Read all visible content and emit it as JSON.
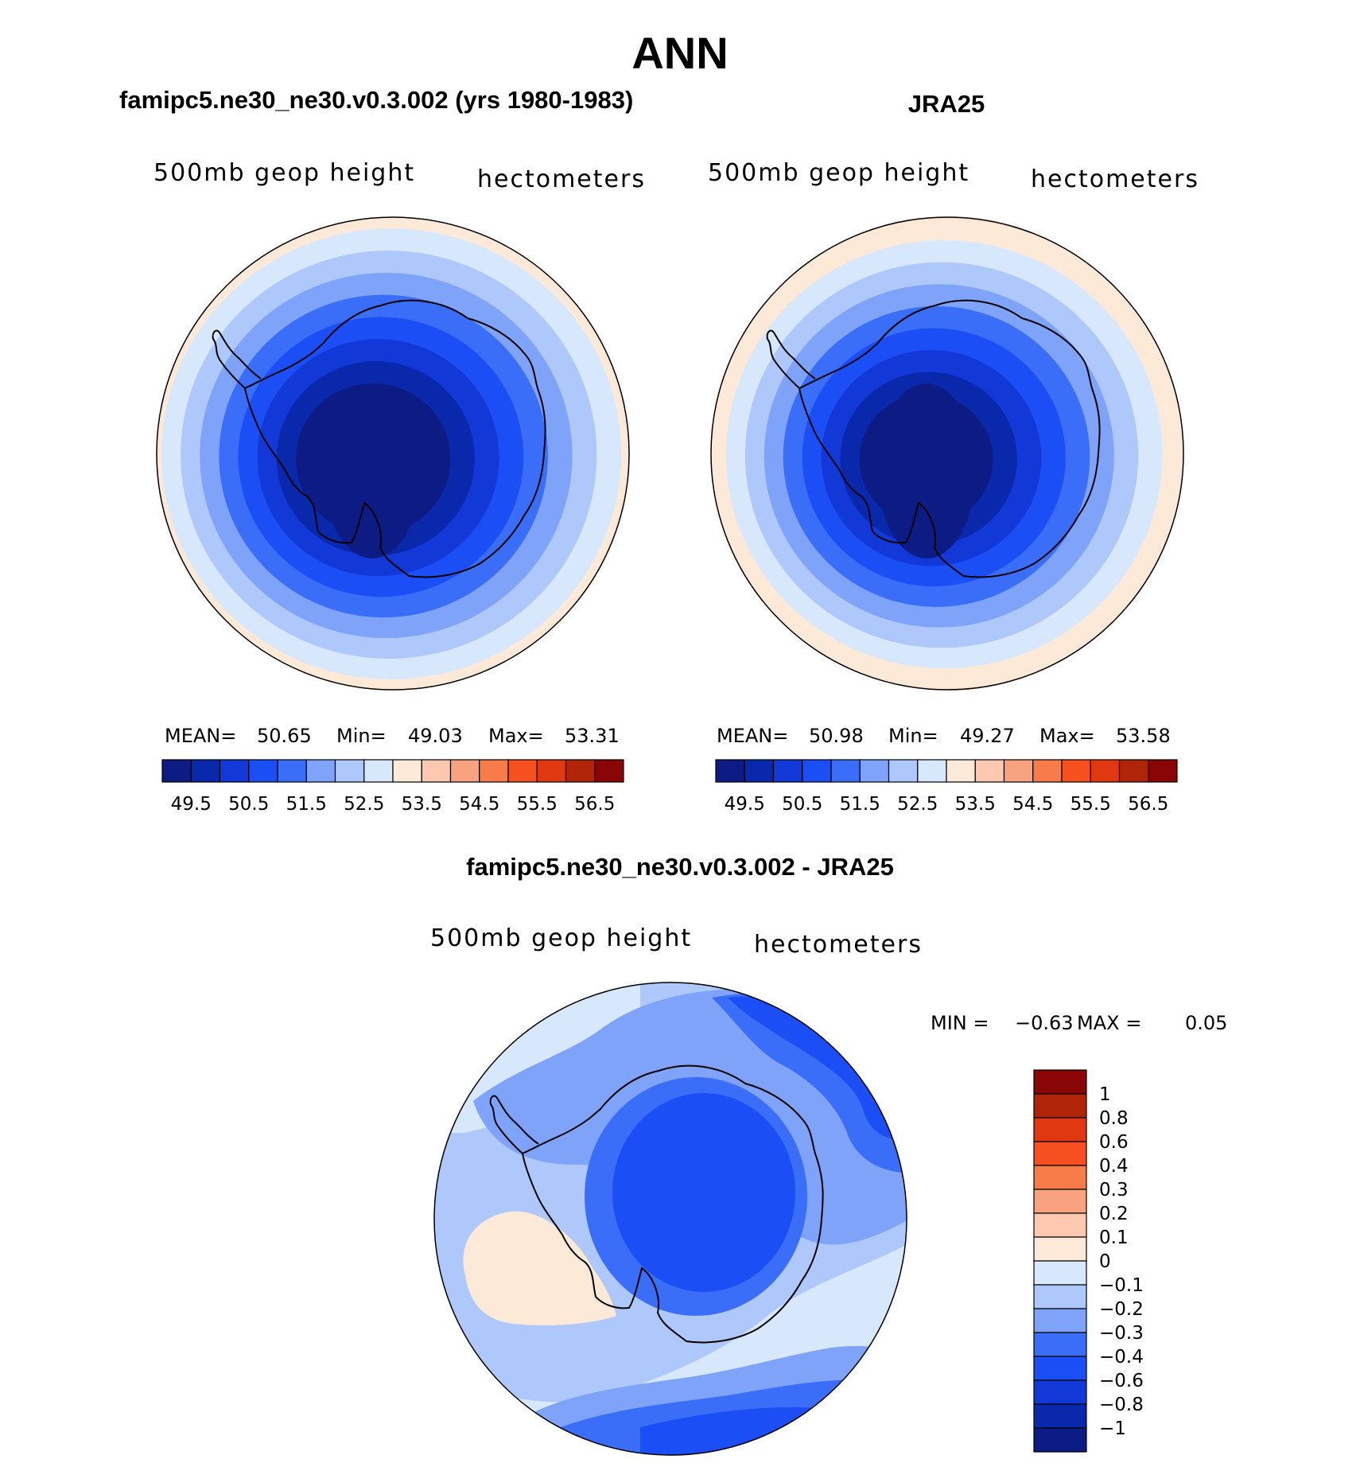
{
  "title": "ANN",
  "colors": {
    "panel_palette": [
      "#0c1c84",
      "#0a28ac",
      "#1338d8",
      "#1c4ef6",
      "#3a6ef8",
      "#7ea3f9",
      "#aec8fb",
      "#d8e8fc",
      "#fde9d8",
      "#fcc8b0",
      "#f9a280",
      "#f87c4a",
      "#f65020",
      "#e03810",
      "#b02508",
      "#8a0606"
    ],
    "diff_palette": [
      "#0c1c84",
      "#0a28ac",
      "#1338d8",
      "#1c4ef6",
      "#3a6ef8",
      "#7ea3f9",
      "#aec8fb",
      "#d8e8fc",
      "#fde9d8",
      "#fcc8b0",
      "#f9a280",
      "#f87c4a",
      "#f65020",
      "#e03810",
      "#b02508",
      "#8a0606"
    ]
  },
  "panels": [
    {
      "title": "famipc5.ne30_ne30.v0.3.002 (yrs 1980-1983)",
      "variable_label": "500mb geop height",
      "units_label": "hectometers",
      "stats": {
        "mean_label": "MEAN=",
        "mean": "50.65",
        "min_label": "Min=",
        "min": "49.03",
        "max_label": "Max=",
        "max": "53.31"
      },
      "field": {
        "center_value": 49.03,
        "edge_value": 53.31
      },
      "colorbar_ticks": [
        "49.5",
        "50.5",
        "51.5",
        "52.5",
        "53.5",
        "54.5",
        "55.5",
        "56.5"
      ]
    },
    {
      "title": "JRA25",
      "variable_label": "500mb geop height",
      "units_label": "hectometers",
      "stats": {
        "mean_label": "MEAN=",
        "mean": "50.98",
        "min_label": "Min=",
        "min": "49.27",
        "max_label": "Max=",
        "max": "53.58"
      },
      "field": {
        "center_value": 49.27,
        "edge_value": 53.58
      },
      "colorbar_ticks": [
        "49.5",
        "50.5",
        "51.5",
        "52.5",
        "53.5",
        "54.5",
        "55.5",
        "56.5"
      ]
    }
  ],
  "difference": {
    "title": "famipc5.ne30_ne30.v0.3.002 - JRA25",
    "variable_label": "500mb geop height",
    "units_label": "hectometers",
    "stats": {
      "min_label": "MIN =",
      "min": "−0.63",
      "max_label": "MAX =",
      "max": "0.05"
    },
    "colorbar_ticks": [
      "1",
      "0.8",
      "0.6",
      "0.4",
      "0.3",
      "0.2",
      "0.1",
      "0",
      "−0.1",
      "−0.2",
      "−0.3",
      "−0.4",
      "−0.6",
      "−0.8",
      "−1"
    ]
  },
  "chart_data": [
    {
      "type": "heatmap",
      "projection": "south polar stereographic",
      "title": "famipc5.ne30_ne30.v0.3.002 (yrs 1980-1983)",
      "variable": "500mb geop height",
      "units": "hectometers",
      "mean": 50.65,
      "min": 49.03,
      "max": 53.31,
      "contour_levels": [
        49.5,
        50,
        50.5,
        51,
        51.5,
        52,
        52.5,
        53,
        53.5,
        54,
        54.5,
        55,
        55.5,
        56,
        56.5
      ],
      "colorbar_tick_labels": [
        49.5,
        50.5,
        51.5,
        52.5,
        53.5,
        54.5,
        55.5,
        56.5
      ]
    },
    {
      "type": "heatmap",
      "projection": "south polar stereographic",
      "title": "JRA25",
      "variable": "500mb geop height",
      "units": "hectometers",
      "mean": 50.98,
      "min": 49.27,
      "max": 53.58,
      "contour_levels": [
        49.5,
        50,
        50.5,
        51,
        51.5,
        52,
        52.5,
        53,
        53.5,
        54,
        54.5,
        55,
        55.5,
        56,
        56.5
      ],
      "colorbar_tick_labels": [
        49.5,
        50.5,
        51.5,
        52.5,
        53.5,
        54.5,
        55.5,
        56.5
      ]
    },
    {
      "type": "heatmap",
      "projection": "south polar stereographic",
      "title": "famipc5.ne30_ne30.v0.3.002 - JRA25",
      "variable": "500mb geop height",
      "units": "hectometers",
      "min": -0.63,
      "max": 0.05,
      "contour_levels": [
        -1,
        -0.8,
        -0.6,
        -0.4,
        -0.3,
        -0.2,
        -0.1,
        0,
        0.1,
        0.2,
        0.3,
        0.4,
        0.6,
        0.8,
        1
      ]
    }
  ]
}
